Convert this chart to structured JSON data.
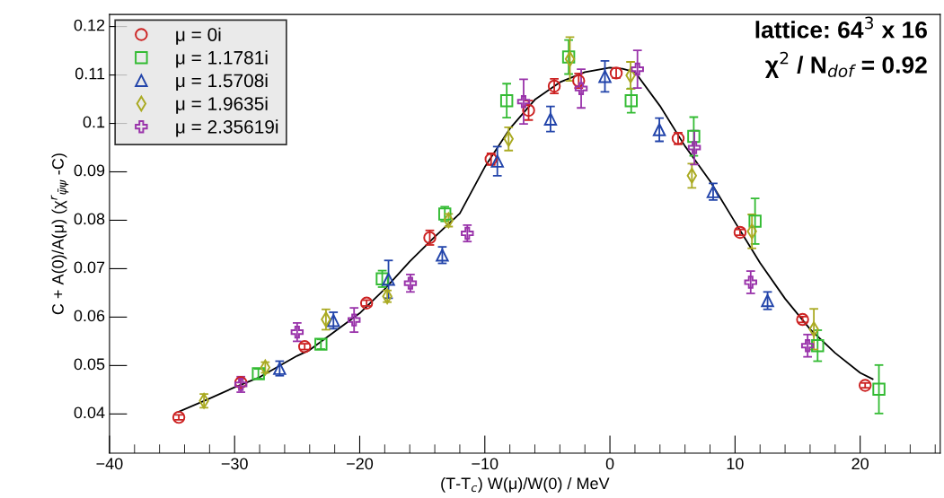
{
  "chart_data": {
    "type": "scatter",
    "xlabel": "(T-T$_{c}$) W(μ)/W(0) / MeV",
    "ylabel": "C + A(0)/A(μ) (χ$^{r}$$_{ψ̄ψ}$ -C)",
    "annotations": [
      "lattice: 64$^{3}$ x 16",
      "χ$^{2}$ / N$_{dof}$ = 0.92"
    ],
    "xlim": [
      -40,
      26.4
    ],
    "ylim": [
      0.0319,
      0.1225
    ],
    "xticks": [
      {
        "value": -40,
        "label": "−40"
      },
      {
        "value": -30,
        "label": "−30"
      },
      {
        "value": -20,
        "label": "−20"
      },
      {
        "value": -10,
        "label": "−10"
      },
      0,
      10,
      20
    ],
    "yticks": [
      0.04,
      0.05,
      0.06,
      0.07,
      0.08,
      0.09,
      0.1,
      0.11,
      0.12
    ],
    "grid": false,
    "legend": "top left",
    "series": [
      {
        "name": "μ = 0i",
        "color": "#cc2222",
        "marker": "circle",
        "x": [
          -34.46,
          -29.5,
          -24.4,
          -19.45,
          -14.4,
          -9.5,
          -6.5,
          -4.45,
          -2.5,
          0.5,
          5.45,
          10.4,
          15.4,
          20.4
        ],
        "values": [
          0.0393,
          0.0465,
          0.0539,
          0.0629,
          0.0764,
          0.0926,
          0.1027,
          0.1077,
          0.1088,
          0.1104,
          0.0969,
          0.0775,
          0.0595,
          0.0459
        ],
        "errors": [
          0.0005,
          0.0008,
          0.0006,
          0.0006,
          0.0015,
          0.0012,
          0.002,
          0.0015,
          0.0015,
          0.001,
          0.0012,
          0.0006,
          0.0006,
          0.0005
        ]
      },
      {
        "name": "μ = 1.1781i",
        "color": "#33bb33",
        "marker": "square",
        "x": [
          -28.1,
          -23.1,
          -18.2,
          -13.2,
          -8.25,
          -3.3,
          1.7,
          6.7,
          11.6,
          16.6,
          21.5
        ],
        "values": [
          0.0483,
          0.0544,
          0.0679,
          0.0813,
          0.1047,
          0.1137,
          0.1047,
          0.0973,
          0.0798,
          0.0541,
          0.0451
        ],
        "errors": [
          0.001,
          0.001,
          0.0017,
          0.0015,
          0.0035,
          0.0035,
          0.0025,
          0.004,
          0.0047,
          0.0032,
          0.005
        ]
      },
      {
        "name": "μ = 1.5708i",
        "color": "#2244aa",
        "marker": "triangle",
        "x": [
          -26.4,
          -22.1,
          -17.7,
          -13.4,
          -9.0,
          -4.75,
          -0.4,
          3.95,
          8.25,
          12.6
        ],
        "values": [
          0.0494,
          0.0593,
          0.0678,
          0.0728,
          0.0922,
          0.1009,
          0.1097,
          0.0987,
          0.0859,
          0.0634
        ],
        "errors": [
          0.0015,
          0.0017,
          0.0039,
          0.0017,
          0.003,
          0.0026,
          0.0032,
          0.0024,
          0.0017,
          0.0018
        ]
      },
      {
        "name": "μ = 1.9635i",
        "color": "#aaaa22",
        "marker": "diamond",
        "x": [
          -32.45,
          -27.55,
          -22.7,
          -17.8,
          -12.9,
          -8.1,
          -3.2,
          1.65,
          6.55,
          11.35,
          16.3
        ],
        "values": [
          0.0427,
          0.0496,
          0.0595,
          0.0643,
          0.08,
          0.0968,
          0.1133,
          0.1099,
          0.0892,
          0.0777,
          0.0575
        ],
        "errors": [
          0.0014,
          0.0011,
          0.0021,
          0.0012,
          0.0013,
          0.0024,
          0.0045,
          0.0028,
          0.0025,
          0.0035,
          0.0042
        ]
      },
      {
        "name": "μ = 2.35619i",
        "color": "#9933aa",
        "marker": "cross",
        "x": [
          -29.5,
          -25.0,
          -20.45,
          -15.95,
          -11.4,
          -6.9,
          -2.3,
          2.2,
          6.75,
          11.25,
          15.8
        ],
        "values": [
          0.0461,
          0.0569,
          0.0594,
          0.067,
          0.0773,
          0.1045,
          0.1072,
          0.1112,
          0.095,
          0.0672,
          0.0541
        ],
        "errors": [
          0.0016,
          0.0019,
          0.0025,
          0.0018,
          0.0017,
          0.0046,
          0.004,
          0.0039,
          0.0035,
          0.0023,
          0.0023
        ]
      },
      {
        "type": "line",
        "color": "#000000",
        "marker": "none",
        "line_style": "solid",
        "x": [
          -34.5,
          -32,
          -30,
          -28,
          -25,
          -24,
          -20,
          -18,
          -16,
          -14,
          -12,
          -10,
          -8,
          -6,
          -4,
          -2,
          0,
          1,
          2,
          4,
          6,
          8,
          10,
          12,
          14,
          16,
          18,
          20,
          21
        ],
        "values": [
          0.0404,
          0.0432,
          0.0455,
          0.0476,
          0.052,
          0.0532,
          0.0608,
          0.0658,
          0.0715,
          0.0766,
          0.0814,
          0.091,
          0.0989,
          0.1049,
          0.1085,
          0.1106,
          0.1115,
          0.1113,
          0.1106,
          0.1036,
          0.0953,
          0.0881,
          0.0796,
          0.0712,
          0.0638,
          0.0575,
          0.0526,
          0.0485,
          0.0472
        ]
      }
    ]
  }
}
